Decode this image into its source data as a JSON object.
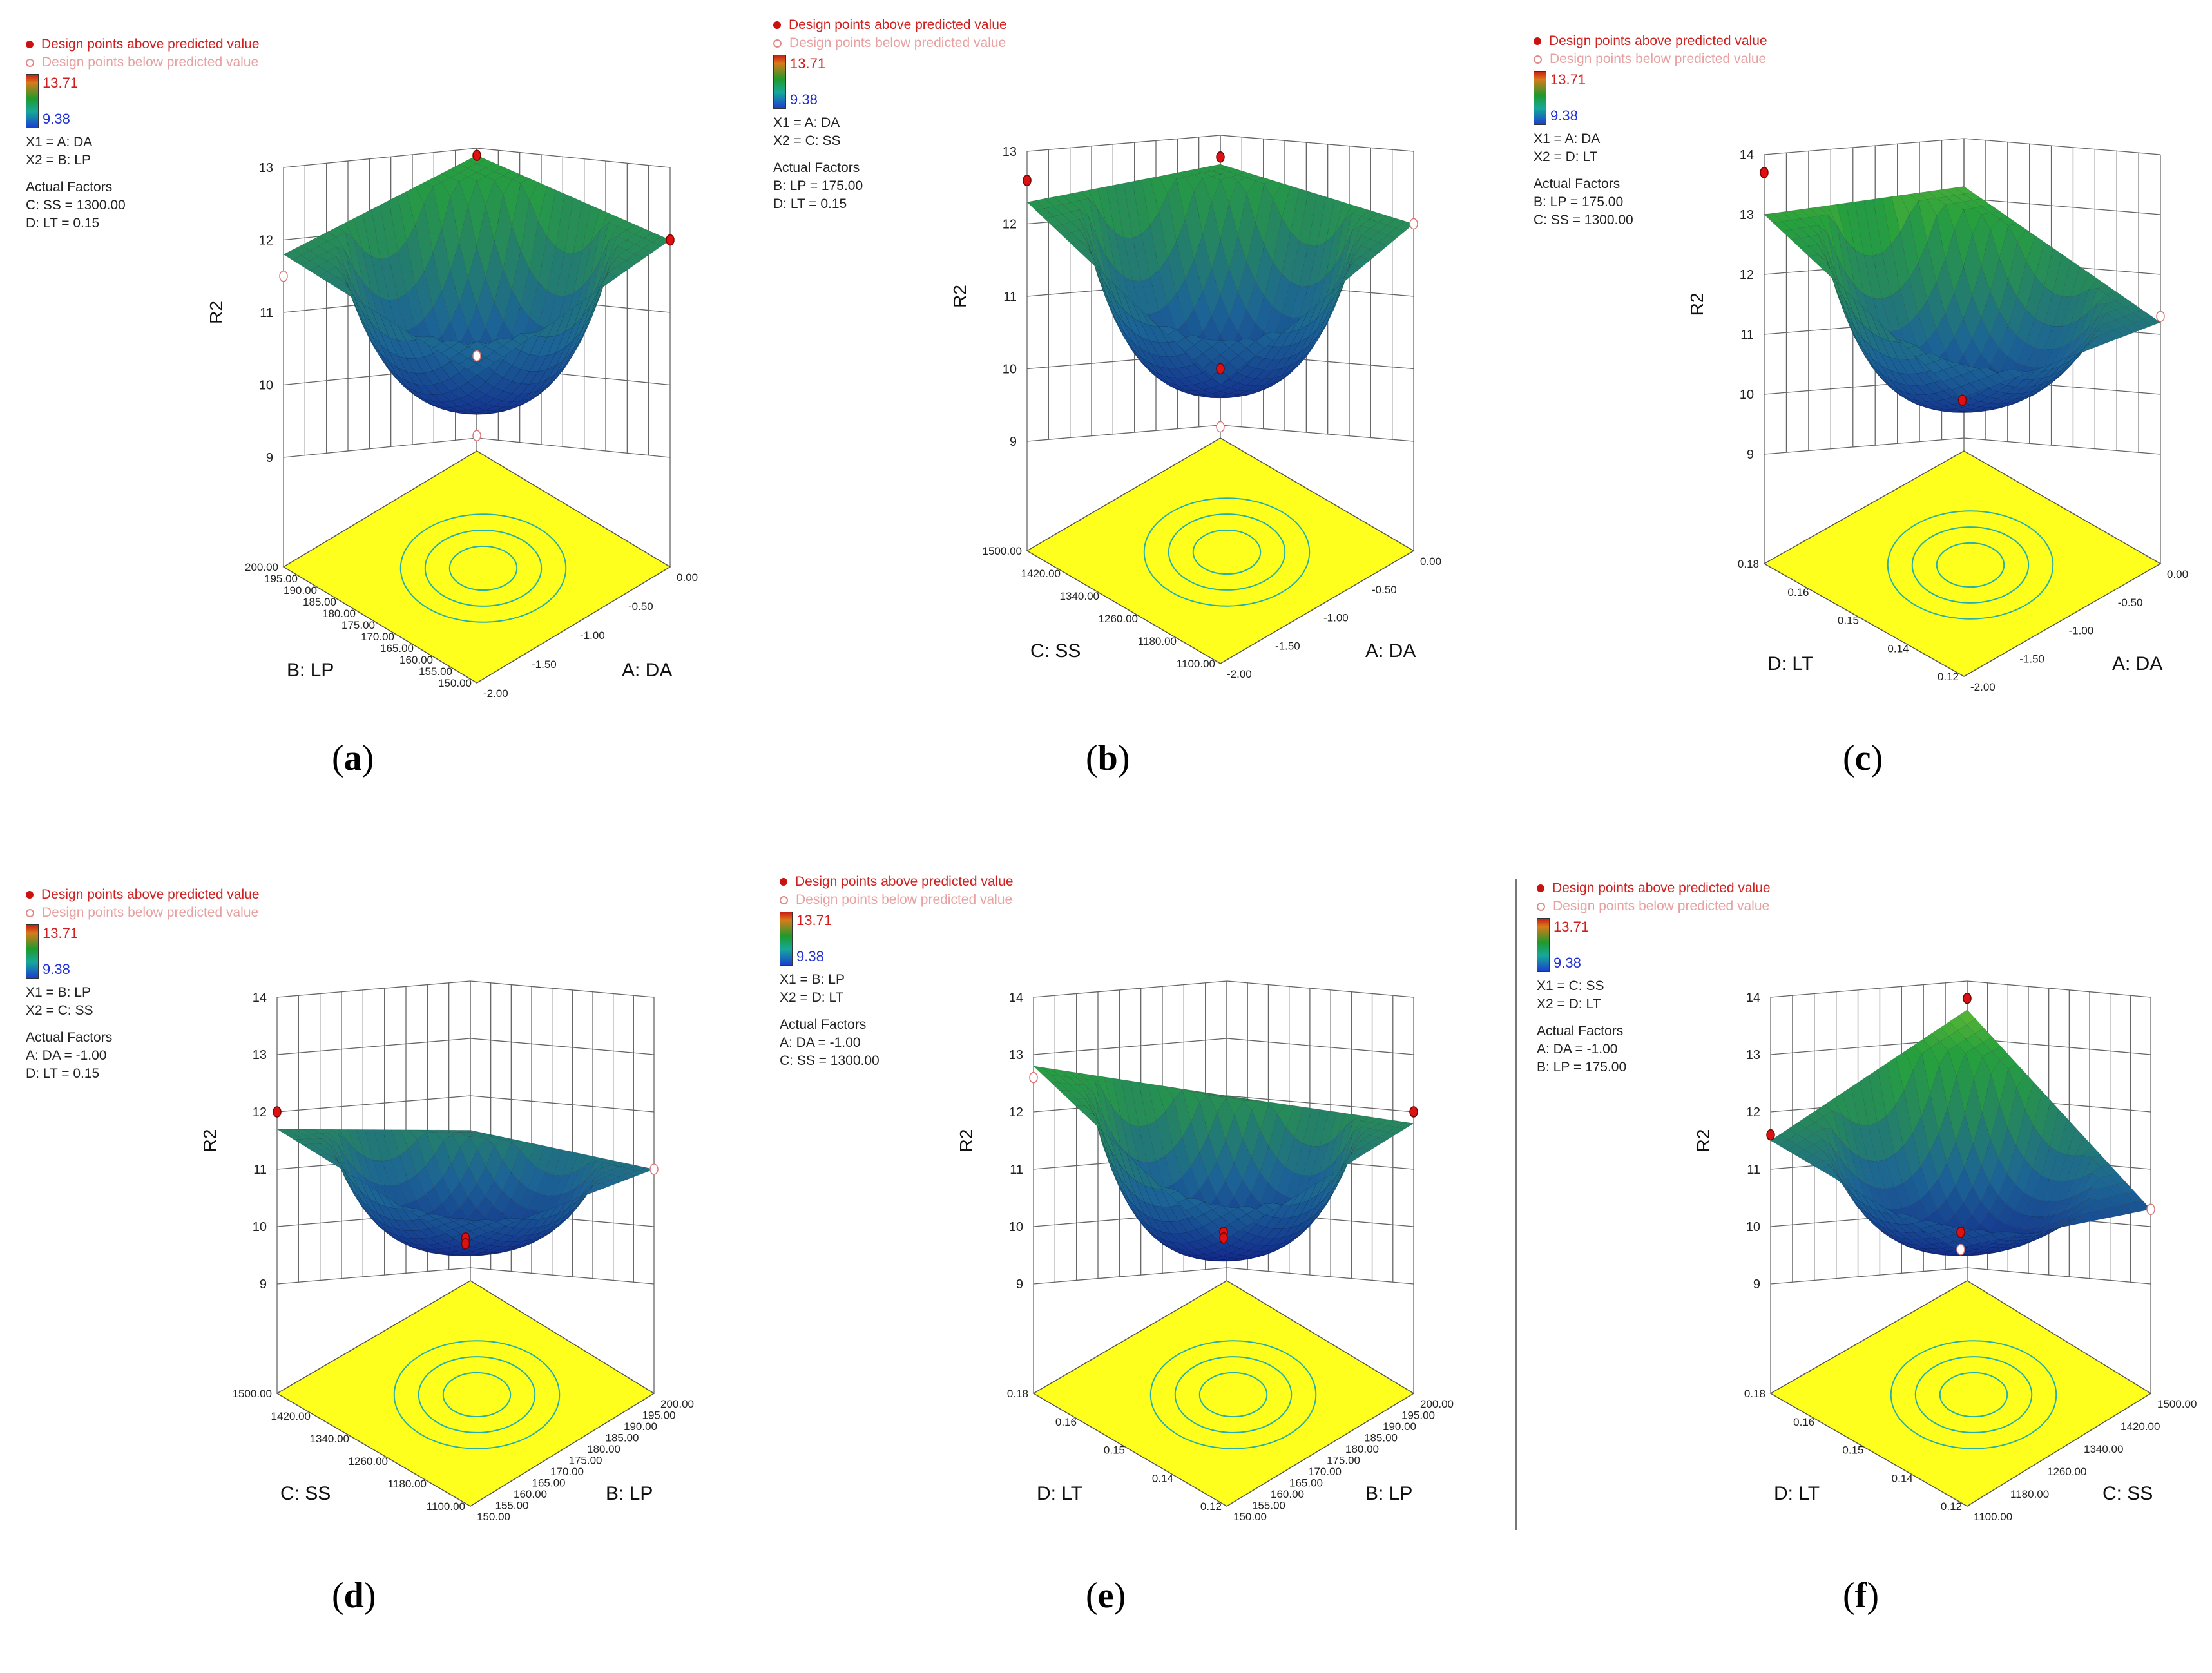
{
  "chart_data": [
    {
      "id": "a",
      "type": "surface3d",
      "caption_letter": "a",
      "zlabel": "R2",
      "zlim": [
        9,
        13
      ],
      "zticks": [
        "9",
        "10",
        "11",
        "12",
        "13"
      ],
      "legend": {
        "above": "Design points above predicted value",
        "below": "Design points below predicted value",
        "color_max": "13.71",
        "color_min": "9.38",
        "x1": "X1 = A: DA",
        "x2": "X2 = B: LP",
        "actual_title": "Actual Factors",
        "actual": [
          "C: SS = 1300.00",
          "D: LT = 0.15"
        ]
      },
      "x_axis": {
        "label": "A: DA",
        "ticks": [
          "0.00",
          "-0.50",
          "-1.00",
          "-1.50",
          "-2.00"
        ]
      },
      "y_axis": {
        "label": "B: LP",
        "ticks": [
          "200.00",
          "195.00",
          "190.00",
          "185.00",
          "180.00",
          "175.00",
          "170.00",
          "165.00",
          "160.00",
          "155.00",
          "150.00"
        ]
      },
      "surface": {
        "left_corner": 11.8,
        "right_corner": 12.0,
        "top_corner": 12.9,
        "bottom_corner": 10.4,
        "minimum": 9.6
      },
      "design_points": [
        {
          "z": 12.9,
          "pos": "top",
          "type": "above"
        },
        {
          "z": 12.0,
          "pos": "right",
          "type": "above"
        },
        {
          "z": 11.5,
          "pos": "left",
          "type": "below"
        },
        {
          "z": 10.4,
          "pos": "center",
          "type": "below"
        },
        {
          "z": 9.3,
          "pos": "center",
          "type": "below"
        }
      ]
    },
    {
      "id": "b",
      "type": "surface3d",
      "caption_letter": "b",
      "zlabel": "R2",
      "zlim": [
        9,
        13
      ],
      "zticks": [
        "9",
        "10",
        "11",
        "12",
        "13"
      ],
      "legend": {
        "above": "Design points above predicted value",
        "below": "Design points below predicted value",
        "color_max": "13.71",
        "color_min": "9.38",
        "x1": "X1 = A: DA",
        "x2": "X2 = C: SS",
        "actual_title": "Actual Factors",
        "actual": [
          "B: LP = 175.00",
          "D: LT = 0.15"
        ]
      },
      "x_axis": {
        "label": "A: DA",
        "ticks": [
          "0.00",
          "-0.50",
          "-1.00",
          "-1.50",
          "-2.00"
        ]
      },
      "y_axis": {
        "label": "C: SS",
        "ticks": [
          "1500.00",
          "1420.00",
          "1340.00",
          "1260.00",
          "1180.00",
          "1100.00"
        ]
      },
      "surface": {
        "left_corner": 12.3,
        "right_corner": 12.0,
        "top_corner": 12.6,
        "bottom_corner": 10.0,
        "minimum": 9.6
      },
      "design_points": [
        {
          "z": 12.7,
          "pos": "top",
          "type": "above"
        },
        {
          "z": 12.6,
          "pos": "left",
          "type": "above"
        },
        {
          "z": 12.0,
          "pos": "right",
          "type": "below"
        },
        {
          "z": 10.0,
          "pos": "center",
          "type": "above"
        },
        {
          "z": 9.2,
          "pos": "center",
          "type": "below"
        }
      ]
    },
    {
      "id": "c",
      "type": "surface3d",
      "caption_letter": "c",
      "zlabel": "R2",
      "zlim": [
        9,
        14
      ],
      "zticks": [
        "9",
        "10",
        "11",
        "12",
        "13",
        "14"
      ],
      "legend": {
        "above": "Design points above predicted value",
        "below": "Design points below predicted value",
        "color_max": "13.71",
        "color_min": "9.38",
        "x1": "X1 = A: DA",
        "x2": "X2 = D: LT",
        "actual_title": "Actual Factors",
        "actual": [
          "B: LP = 175.00",
          "C: SS = 1300.00"
        ]
      },
      "x_axis": {
        "label": "A: DA",
        "ticks": [
          "0.00",
          "-0.50",
          "-1.00",
          "-1.50",
          "-2.00"
        ]
      },
      "y_axis": {
        "label": "D: LT",
        "ticks": [
          "0.18",
          "0.16",
          "0.15",
          "0.14",
          "0.12"
        ]
      },
      "surface": {
        "left_corner": 13.0,
        "right_corner": 11.2,
        "top_corner": 13.2,
        "bottom_corner": 10.2,
        "minimum": 9.7
      },
      "design_points": [
        {
          "z": 13.7,
          "pos": "left",
          "type": "above"
        },
        {
          "z": 11.3,
          "pos": "right",
          "type": "below"
        },
        {
          "z": 9.9,
          "pos": "center",
          "type": "above"
        }
      ]
    },
    {
      "id": "d",
      "type": "surface3d",
      "caption_letter": "d",
      "zlabel": "R2",
      "zlim": [
        9,
        14
      ],
      "zticks": [
        "9",
        "10",
        "11",
        "12",
        "13",
        "14"
      ],
      "legend": {
        "above": "Design points above predicted value",
        "below": "Design points below predicted value",
        "color_max": "13.71",
        "color_min": "9.38",
        "x1": "X1 = B: LP",
        "x2": "X2 = C: SS",
        "actual_title": "Actual Factors",
        "actual": [
          "A: DA = -1.00",
          "D: LT = 0.15"
        ]
      },
      "x_axis": {
        "label": "B: LP",
        "ticks": [
          "200.00",
          "195.00",
          "190.00",
          "185.00",
          "180.00",
          "175.00",
          "170.00",
          "165.00",
          "160.00",
          "155.00",
          "150.00"
        ]
      },
      "y_axis": {
        "label": "C: SS",
        "ticks": [
          "1500.00",
          "1420.00",
          "1340.00",
          "1260.00",
          "1180.00",
          "1100.00"
        ]
      },
      "surface": {
        "left_corner": 11.7,
        "right_corner": 11.0,
        "top_corner": 11.4,
        "bottom_corner": 10.0,
        "minimum": 9.5
      },
      "design_points": [
        {
          "z": 12.0,
          "pos": "left",
          "type": "above"
        },
        {
          "z": 11.0,
          "pos": "right",
          "type": "below"
        },
        {
          "z": 9.8,
          "pos": "center",
          "type": "above"
        },
        {
          "z": 9.7,
          "pos": "center",
          "type": "above"
        }
      ]
    },
    {
      "id": "e",
      "type": "surface3d",
      "caption_letter": "e",
      "zlabel": "R2",
      "zlim": [
        9,
        14
      ],
      "zticks": [
        "9",
        "10",
        "11",
        "12",
        "13",
        "14"
      ],
      "legend": {
        "above": "Design points above predicted value",
        "below": "Design points below predicted value",
        "color_max": "13.71",
        "color_min": "9.38",
        "x1": "X1 = B: LP",
        "x2": "X2 = D: LT",
        "actual_title": "Actual Factors",
        "actual": [
          "A: DA = -1.00",
          "C: SS = 1300.00"
        ]
      },
      "x_axis": {
        "label": "B: LP",
        "ticks": [
          "200.00",
          "195.00",
          "190.00",
          "185.00",
          "180.00",
          "175.00",
          "170.00",
          "165.00",
          "160.00",
          "155.00",
          "150.00"
        ]
      },
      "y_axis": {
        "label": "D: LT",
        "ticks": [
          "0.18",
          "0.16",
          "0.15",
          "0.14",
          "0.12"
        ]
      },
      "surface": {
        "left_corner": 12.8,
        "right_corner": 11.8,
        "top_corner": 12.0,
        "bottom_corner": 10.0,
        "minimum": 9.4
      },
      "design_points": [
        {
          "z": 12.6,
          "pos": "left",
          "type": "below"
        },
        {
          "z": 12.0,
          "pos": "right",
          "type": "above"
        },
        {
          "z": 9.9,
          "pos": "center",
          "type": "above"
        },
        {
          "z": 9.8,
          "pos": "center",
          "type": "above"
        }
      ]
    },
    {
      "id": "f",
      "type": "surface3d",
      "caption_letter": "f",
      "zlabel": "R2",
      "zlim": [
        9,
        14
      ],
      "zticks": [
        "9",
        "10",
        "11",
        "12",
        "13",
        "14"
      ],
      "legend": {
        "above": "Design points above predicted value",
        "below": "Design points below predicted value",
        "color_max": "13.71",
        "color_min": "9.38",
        "x1": "X1 = C: SS",
        "x2": "X2 = D: LT",
        "actual_title": "Actual Factors",
        "actual": [
          "A: DA = -1.00",
          "B: LP = 175.00"
        ]
      },
      "x_axis": {
        "label": "C: SS",
        "ticks": [
          "1500.00",
          "1420.00",
          "1340.00",
          "1260.00",
          "1180.00",
          "1100.00"
        ]
      },
      "y_axis": {
        "label": "D: LT",
        "ticks": [
          "0.18",
          "0.16",
          "0.15",
          "0.14",
          "0.12"
        ]
      },
      "surface": {
        "left_corner": 11.5,
        "right_corner": 10.3,
        "top_corner": 13.5,
        "bottom_corner": 9.9,
        "minimum": 9.5
      },
      "design_points": [
        {
          "z": 13.7,
          "pos": "top",
          "type": "above"
        },
        {
          "z": 11.6,
          "pos": "left",
          "type": "above"
        },
        {
          "z": 10.3,
          "pos": "right",
          "type": "below"
        },
        {
          "z": 9.9,
          "pos": "center",
          "type": "above"
        },
        {
          "z": 9.6,
          "pos": "center",
          "type": "below"
        }
      ]
    }
  ]
}
